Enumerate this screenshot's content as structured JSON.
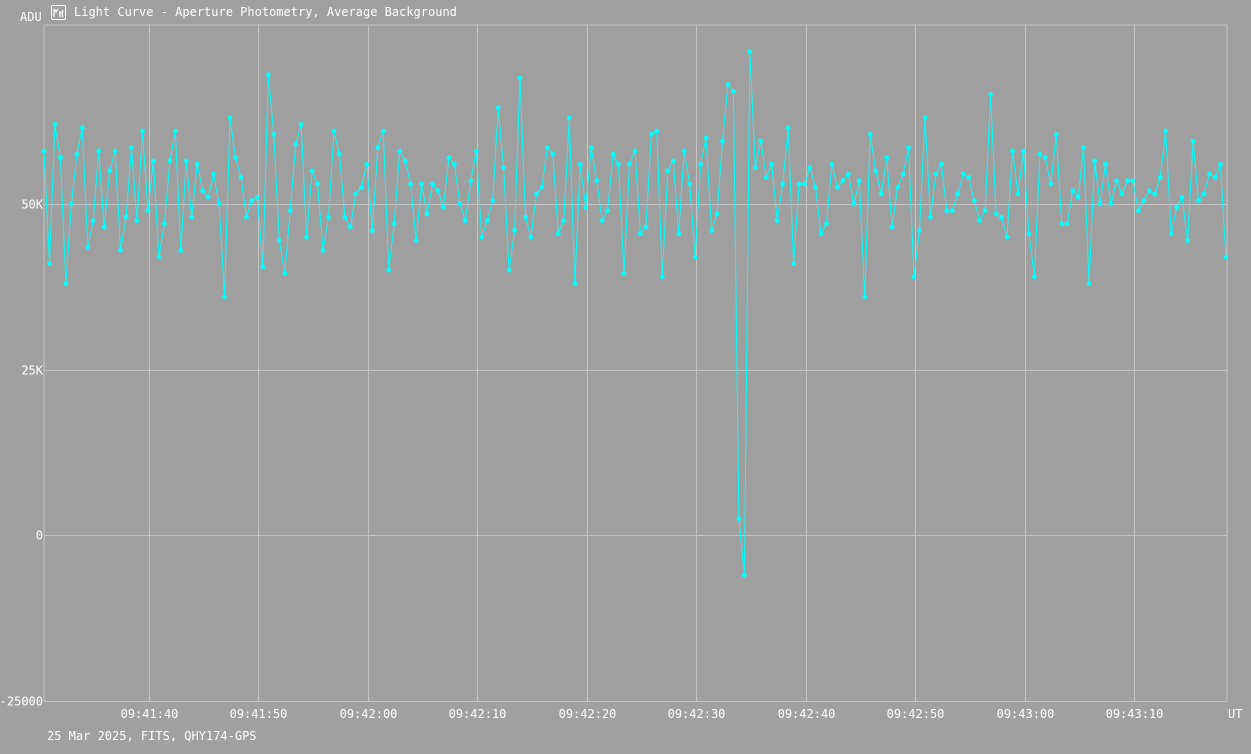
{
  "window": {
    "title": "Light Curve - Aperture Photometry, Average Background",
    "icon": "light-curve-app-icon"
  },
  "footer": {
    "info": "25 Mar 2025, FITS, QHY174-GPS"
  },
  "colors": {
    "background": "#a0a0a0",
    "grid": "#c4c4c4",
    "series": "#00ffff",
    "text": "#ffffff"
  },
  "chart_data": {
    "type": "line",
    "title": "Light Curve - Aperture Photometry, Average Background",
    "xlabel": "UT",
    "ylabel": "ADU",
    "grid": true,
    "ylim": [
      -25000,
      77000
    ],
    "xlim": [
      "09:41:30.4",
      "09:43:18.5"
    ],
    "y_ticks": [
      {
        "value": 50000,
        "label": "50K"
      },
      {
        "value": 25000,
        "label": "25K"
      },
      {
        "value": 0,
        "label": "0"
      },
      {
        "value": -25000,
        "label": "-25000"
      }
    ],
    "x_ticks": [
      "09:41:40",
      "09:41:50",
      "09:42:00",
      "09:42:10",
      "09:42:20",
      "09:42:30",
      "09:42:40",
      "09:42:50",
      "09:43:00",
      "09:43:10"
    ],
    "series": [
      {
        "x_start": "09:41:30.4",
        "x_step_s": 0.5,
        "values": [
          58000,
          41000,
          62000,
          57000,
          38000,
          50000,
          57500,
          61500,
          43500,
          47500,
          58000,
          46500,
          55000,
          58000,
          43000,
          48000,
          58500,
          47500,
          61000,
          49000,
          56500,
          42000,
          47000,
          56500,
          61000,
          43000,
          56500,
          48000,
          56000,
          52000,
          51000,
          54500,
          50000,
          36000,
          63000,
          57000,
          54000,
          48000,
          50500,
          51000,
          40500,
          69500,
          60500,
          44500,
          39500,
          49000,
          59000,
          62000,
          45000,
          55000,
          53000,
          43000,
          48000,
          61000,
          57500,
          48000,
          46500,
          51500,
          52500,
          56000,
          46000,
          58500,
          61000,
          40000,
          47000,
          58000,
          56500,
          53000,
          44500,
          53000,
          48500,
          53000,
          52000,
          49500,
          57000,
          56000,
          50000,
          47500,
          53500,
          58000,
          45000,
          47500,
          50500,
          64500,
          55500,
          40000,
          46000,
          69000,
          48000,
          45000,
          51500,
          52500,
          58500,
          57500,
          45500,
          47500,
          63000,
          38000,
          56000,
          49500,
          58500,
          53500,
          47500,
          49000,
          57500,
          56000,
          39500,
          56000,
          58000,
          45500,
          46500,
          60500,
          61000,
          39000,
          55000,
          56500,
          45500,
          58000,
          53000,
          42000,
          56000,
          60000,
          46000,
          48500,
          59500,
          68000,
          67000,
          2500,
          -6000,
          73000,
          55500,
          59500,
          54000,
          56000,
          47500,
          53000,
          61500,
          41000,
          53000,
          53000,
          55500,
          52500,
          45500,
          47000,
          56000,
          52500,
          53500,
          54500,
          50000,
          53500,
          36000,
          60500,
          55000,
          51500,
          57000,
          46500,
          52500,
          54500,
          58500,
          39000,
          46000,
          63000,
          48000,
          54500,
          56000,
          49000,
          49000,
          51500,
          54500,
          54000,
          50500,
          47500,
          49000,
          66500,
          48500,
          48000,
          45000,
          58000,
          51500,
          58000,
          45500,
          39000,
          57500,
          57000,
          53000,
          60500,
          47000,
          47000,
          52000,
          51000,
          58500,
          38000,
          56500,
          50000,
          56000,
          50000,
          53500,
          51500,
          53500,
          53500,
          49000,
          50500,
          52000,
          51500,
          54000,
          61000,
          45500,
          49500,
          51000,
          44500,
          59500,
          50500,
          51500,
          54500,
          54000,
          56000,
          42000
        ]
      }
    ]
  }
}
